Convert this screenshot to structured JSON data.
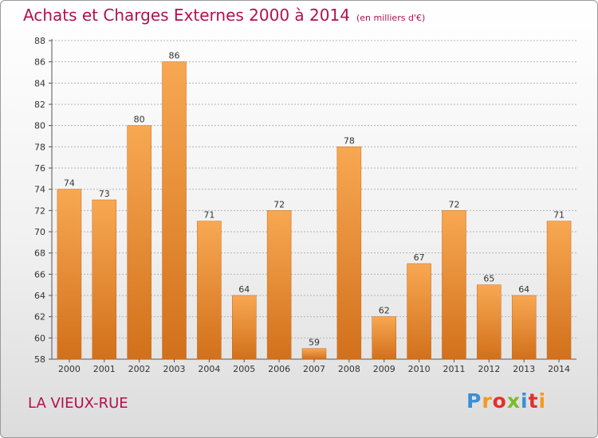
{
  "title": "Achats et Charges Externes 2000 à 2014",
  "unit_label": "(en milliers d'€)",
  "commune": "LA VIEUX-RUE",
  "logo": {
    "letters": [
      "P",
      "r",
      "o",
      "x",
      "i",
      "t",
      "i"
    ],
    "colors": [
      "#3a8fd6",
      "#f39a1e",
      "#e2312d",
      "#7bbb2b",
      "#3a8fd6",
      "#e2312d",
      "#f39a1e"
    ]
  },
  "colors": {
    "title": "#b2114d",
    "bar_light": "#f8a852",
    "bar_dark": "#d2701b",
    "grid": "#b5b5b5"
  },
  "chart_data": {
    "type": "bar",
    "categories": [
      "2000",
      "2001",
      "2002",
      "2003",
      "2004",
      "2005",
      "2006",
      "2007",
      "2008",
      "2009",
      "2010",
      "2011",
      "2012",
      "2013",
      "2014"
    ],
    "values": [
      74,
      73,
      80,
      86,
      71,
      64,
      72,
      59,
      78,
      62,
      67,
      72,
      65,
      64,
      71
    ],
    "ylim": [
      58,
      88
    ],
    "yticks": [
      58,
      60,
      62,
      64,
      66,
      68,
      70,
      72,
      74,
      76,
      78,
      80,
      82,
      84,
      86,
      88
    ],
    "grid": true
  }
}
